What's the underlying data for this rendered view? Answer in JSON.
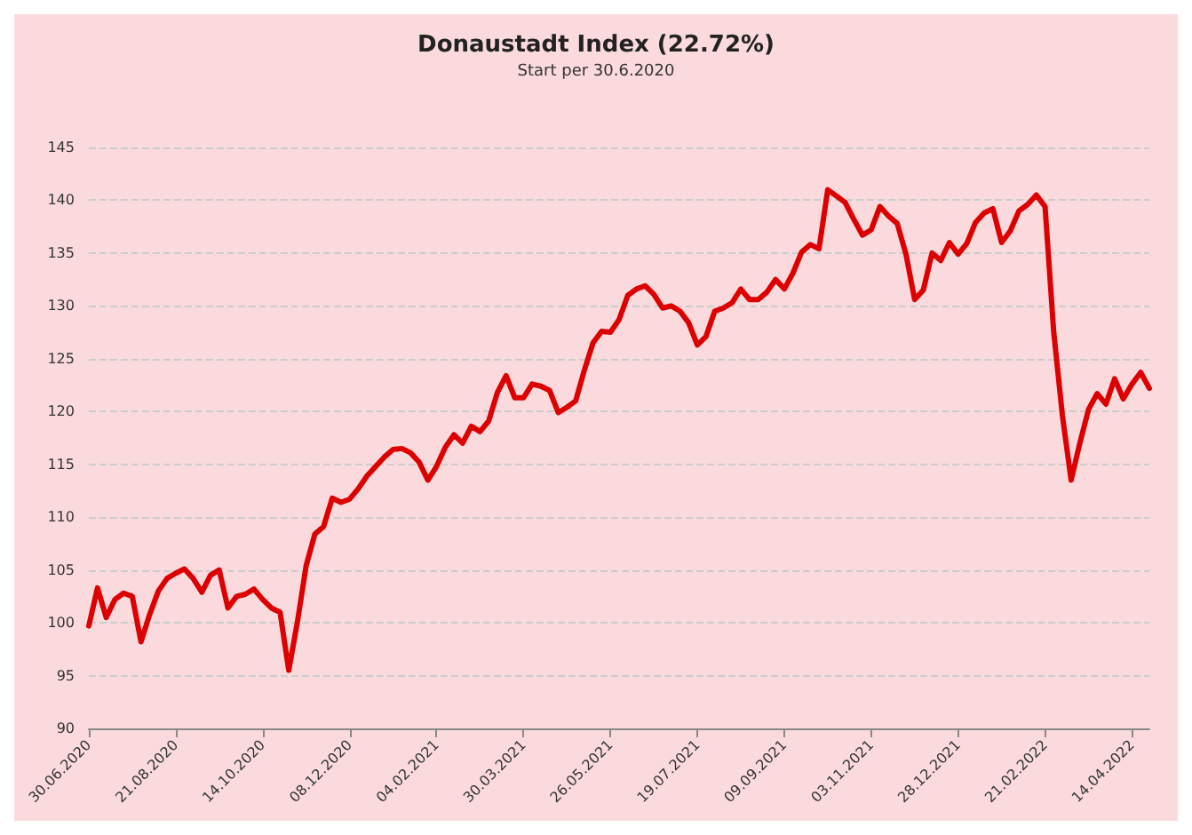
{
  "chart_data": {
    "type": "line",
    "title": "Donaustadt Index (22.72%)",
    "subtitle": "Start per 30.6.2020",
    "categories": [
      "30.06.2020",
      null,
      null,
      null,
      null,
      null,
      null,
      null,
      null,
      null,
      "21.08.2020",
      null,
      null,
      null,
      null,
      null,
      null,
      null,
      null,
      null,
      "14.10.2020",
      null,
      null,
      null,
      null,
      null,
      null,
      null,
      null,
      null,
      "08.12.2020",
      null,
      null,
      null,
      null,
      null,
      null,
      null,
      null,
      null,
      "04.02.2021",
      null,
      null,
      null,
      null,
      null,
      null,
      null,
      null,
      null,
      "30.03.2021",
      null,
      null,
      null,
      null,
      null,
      null,
      null,
      null,
      null,
      "26.05.2021",
      null,
      null,
      null,
      null,
      null,
      null,
      null,
      null,
      null,
      "19.07.2021",
      null,
      null,
      null,
      null,
      null,
      null,
      null,
      null,
      null,
      "09.09.2021",
      null,
      null,
      null,
      null,
      null,
      null,
      null,
      null,
      null,
      "03.11.2021",
      null,
      null,
      null,
      null,
      null,
      null,
      null,
      null,
      null,
      "28.12.2021",
      null,
      null,
      null,
      null,
      null,
      null,
      null,
      null,
      null,
      "21.02.2022",
      null,
      null,
      null,
      null,
      null,
      null,
      null,
      null,
      null,
      "14.04.2022",
      null,
      null
    ],
    "series": [
      {
        "color": "#dd0000",
        "values": [
          99.7,
          103.3,
          100.5,
          102.2,
          102.8,
          102.5,
          98.2,
          100.8,
          103,
          104.2,
          104.7,
          105.1,
          104.2,
          102.9,
          104.5,
          105,
          101.4,
          102.5,
          102.7,
          103.2,
          102.2,
          101.4,
          101,
          95.5,
          100.1,
          105.4,
          108.4,
          109.1,
          111.8,
          111.4,
          111.7,
          112.7,
          113.9,
          114.8,
          115.7,
          116.4,
          116.5,
          116.1,
          115.2,
          113.5,
          114.8,
          116.6,
          117.8,
          117,
          118.6,
          118.1,
          119.1,
          121.8,
          123.4,
          121.3,
          121.3,
          122.6,
          122.4,
          122,
          119.9,
          120.4,
          121,
          123.9,
          126.5,
          127.6,
          127.5,
          128.7,
          131,
          131.6,
          131.9,
          131.1,
          129.8,
          130,
          129.5,
          128.4,
          126.3,
          127.1,
          129.5,
          129.8,
          130.3,
          131.6,
          130.6,
          130.6,
          131.3,
          132.5,
          131.6,
          133.1,
          135.1,
          135.8,
          135.4,
          141,
          140.4,
          139.8,
          138.2,
          136.7,
          137.2,
          139.4,
          138.5,
          137.8,
          134.9,
          130.6,
          131.5,
          135,
          134.3,
          136,
          134.9,
          135.9,
          137.9,
          138.8,
          139.2,
          136,
          137.1,
          139,
          139.6,
          140.5,
          139.4,
          127.5,
          119.6,
          113.5,
          117,
          120.2,
          121.7,
          120.7,
          123.1,
          121.2,
          122.6,
          123.7,
          122.2
        ]
      }
    ],
    "ylim": [
      90,
      145
    ],
    "yticks": [
      90,
      95,
      100,
      105,
      110,
      115,
      120,
      125,
      130,
      135,
      140,
      145
    ],
    "grid": "y",
    "marker": "none",
    "line_style": "solid"
  }
}
